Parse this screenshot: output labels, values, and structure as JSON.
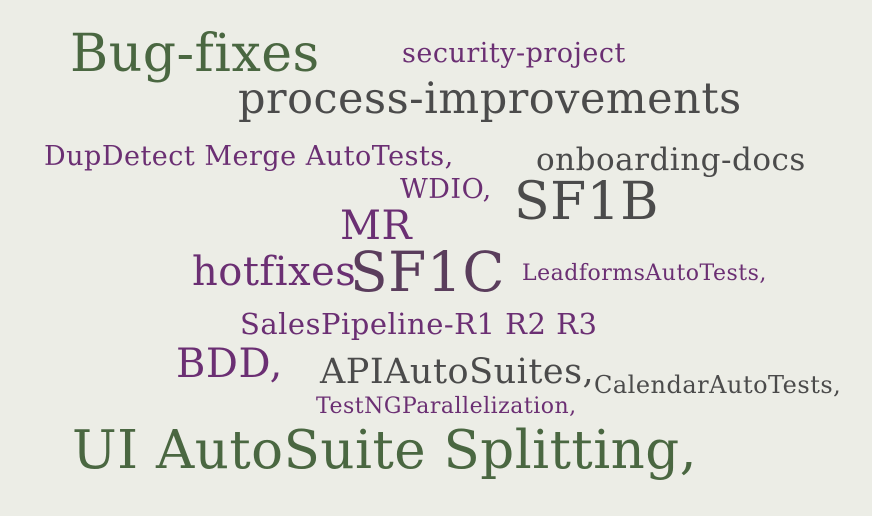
{
  "colors": {
    "background": "#ecede6",
    "green": "#4a6741",
    "purple": "#6b2f73",
    "gray": "#4b4b4b"
  },
  "words": [
    {
      "text": "Bug-fixes",
      "color": "#4a6741"
    },
    {
      "text": "security-project",
      "color": "#6b2f73"
    },
    {
      "text": "process-improvements",
      "color": "#4b4b4b"
    },
    {
      "text": "DupDetect Merge AutoTests,",
      "color": "#6b2f73"
    },
    {
      "text": "onboarding-docs",
      "color": "#4b4b4b"
    },
    {
      "text": "WDIO,",
      "color": "#6b2f73"
    },
    {
      "text": "SF1B",
      "color": "#4b4b4b"
    },
    {
      "text": "MR",
      "color": "#6b2f73"
    },
    {
      "text": "hotfixes",
      "color": "#6b2f73"
    },
    {
      "text": "SF1C",
      "color": "#5a3d5c"
    },
    {
      "text": "LeadformsAutoTests,",
      "color": "#6b2f73"
    },
    {
      "text": "SalesPipeline-R1 R2 R3",
      "color": "#6b2f73"
    },
    {
      "text": "BDD,",
      "color": "#6b2f73"
    },
    {
      "text": "APIAutoSuites,",
      "color": "#4b4b4b"
    },
    {
      "text": "CalendarAutoTests,",
      "color": "#4b4b4b"
    },
    {
      "text": "TestNGParallelization,",
      "color": "#6b2f73"
    },
    {
      "text": "UI AutoSuite Splitting,",
      "color": "#4a6741"
    }
  ]
}
